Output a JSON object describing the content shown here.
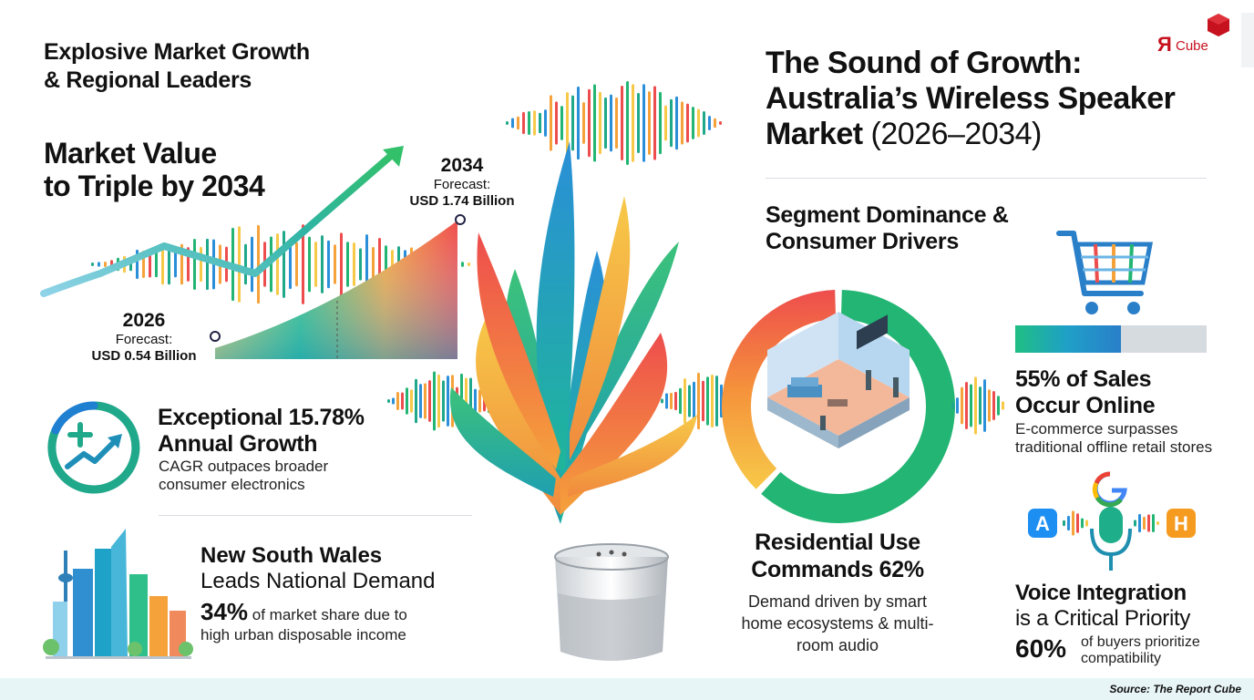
{
  "left": {
    "section_title_line1": "Explosive Market Growth",
    "section_title_line2": "& Regional Leaders",
    "headline_line1": "Market Value",
    "headline_line2": "to Triple by 2034",
    "start": {
      "year": "2026",
      "label": "Forecast:",
      "value": "USD 0.54 Billion"
    },
    "end": {
      "year": "2034",
      "label": "Forecast:",
      "value": "USD 1.74 Billion"
    },
    "cagr_title_line1": "Exceptional 15.78%",
    "cagr_title_line2": "Annual Growth",
    "cagr_sub_line1": "CAGR outpaces broader",
    "cagr_sub_line2": "consumer electronics",
    "nsw_title": "New South Wales",
    "nsw_title2": "Leads National Demand",
    "nsw_pct": "34%",
    "nsw_desc_line1": " of market share due to",
    "nsw_desc_line2": "high urban disposable income"
  },
  "right": {
    "brand": "Cube",
    "brand_mark": "Я",
    "title_line1": "The Sound of Growth:",
    "title_line2": "Australia’s Wireless Speaker",
    "title_line3": "Market",
    "title_years": " (2026–2034)",
    "segment_line1": "Segment Dominance &",
    "segment_line2": "Consumer Drivers",
    "online_pct": "55%",
    "online_title_rest": " of Sales",
    "online_title_line2": "Occur Online",
    "online_sub_line1": "E-commerce surpasses",
    "online_sub_line2": "traditional offline retail stores",
    "online_bar_fraction": 0.55,
    "residential_line1": "Residential Use",
    "residential_line2": "Commands 62%",
    "residential_fraction": 0.62,
    "residential_sub_line1": "Demand driven by smart",
    "residential_sub_line2": "home ecosystems & multi-",
    "residential_sub_line3": "room audio",
    "voice_line1": "Voice Integration",
    "voice_line2": "is a Critical Priority",
    "voice_pct": "60%",
    "voice_sub_line1": "of buyers prioritize",
    "voice_sub_line2": "compatibility",
    "voice_icons": [
      "google-icon",
      "app-store-icon",
      "microphone-icon",
      "h-app-icon"
    ]
  },
  "footer": {
    "source": "Source: The Report Cube"
  },
  "colors": {
    "teal": "#1fa88a",
    "blue": "#1f7fd1",
    "green": "#22b573",
    "orange": "#f7a23a",
    "red": "#ee4d4d",
    "text": "#111111"
  }
}
